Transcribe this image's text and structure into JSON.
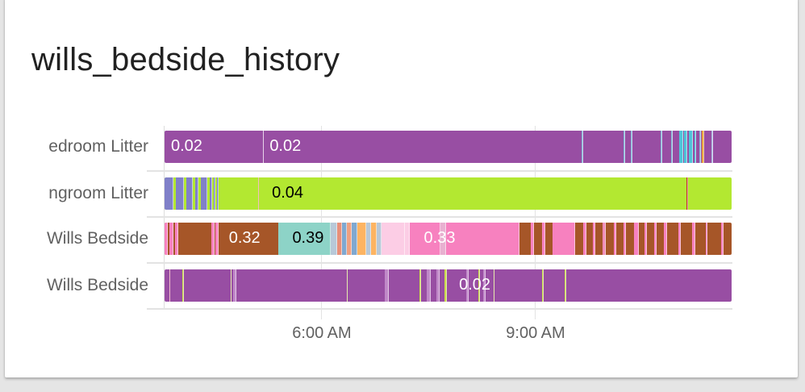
{
  "card": {
    "title": "wills_bedside_history"
  },
  "chart_data": {
    "type": "timeline",
    "title": "wills_bedside_history",
    "xlabel": "",
    "ylabel": "",
    "x_ticks": [
      "6:00 AM",
      "9:00 AM"
    ],
    "grid": true,
    "rows": [
      {
        "label": "Bedroom Litter",
        "visible_label": "edroom Litter",
        "base_color": "#984ea3",
        "value_labels": [
          {
            "text": "0.02",
            "x_pct": 0.0,
            "color": "#ffffff"
          },
          {
            "text": "0.02",
            "x_pct": 17.4,
            "color": "#ffffff"
          }
        ],
        "segments": [
          {
            "start": 0,
            "end": 100,
            "color": "#984ea3"
          },
          {
            "start": 17.3,
            "end": 17.45,
            "color": "#c9a0d0"
          },
          {
            "start": 73.6,
            "end": 73.85,
            "color": "#7fb3d5"
          },
          {
            "start": 81.0,
            "end": 81.25,
            "color": "#7fb3d5"
          },
          {
            "start": 82.2,
            "end": 82.45,
            "color": "#7fb3d5"
          },
          {
            "start": 87.5,
            "end": 87.75,
            "color": "#7fb3d5"
          },
          {
            "start": 89.3,
            "end": 89.55,
            "color": "#7fb3d5"
          },
          {
            "start": 90.8,
            "end": 91.4,
            "color": "#4fc3d8"
          },
          {
            "start": 91.6,
            "end": 92.2,
            "color": "#4fc3d8"
          },
          {
            "start": 92.4,
            "end": 93.2,
            "color": "#4fc3d8"
          },
          {
            "start": 93.4,
            "end": 93.8,
            "color": "#4fc3d8"
          },
          {
            "start": 94.3,
            "end": 94.55,
            "color": "#7fb3d5"
          },
          {
            "start": 94.8,
            "end": 95.2,
            "color": "#e8a33d"
          },
          {
            "start": 96.5,
            "end": 96.75,
            "color": "#a8b8e0"
          }
        ]
      },
      {
        "label": "Livingroom Litter",
        "visible_label": "ngroom Litter",
        "base_color": "#b3e831",
        "value_labels": [
          {
            "text": "0.04",
            "x_pct": 17.8,
            "color": "#000000"
          }
        ],
        "segments": [
          {
            "start": 0,
            "end": 100,
            "color": "#b3e831"
          },
          {
            "start": 0.0,
            "end": 1.6,
            "color": "#8080c8"
          },
          {
            "start": 2.0,
            "end": 3.4,
            "color": "#8080c8"
          },
          {
            "start": 3.8,
            "end": 5.0,
            "color": "#8080c8"
          },
          {
            "start": 5.4,
            "end": 6.0,
            "color": "#8080c8"
          },
          {
            "start": 6.4,
            "end": 7.6,
            "color": "#8080c8"
          },
          {
            "start": 8.0,
            "end": 8.4,
            "color": "#8080c8"
          },
          {
            "start": 8.7,
            "end": 9.0,
            "color": "#8080c8"
          },
          {
            "start": 9.3,
            "end": 9.6,
            "color": "#8080c8"
          },
          {
            "start": 16.5,
            "end": 16.7,
            "color": "#e07070"
          },
          {
            "start": 92.0,
            "end": 92.3,
            "color": "#c0392b"
          }
        ]
      },
      {
        "label": "Wills Bedside",
        "visible_label": "Wills Bedside",
        "base_color": "#a65628",
        "value_labels": [
          {
            "text": "0.32",
            "x_pct": 10.2,
            "color": "#ffffff"
          },
          {
            "text": "0.39",
            "x_pct": 21.4,
            "color": "#000000"
          },
          {
            "text": "0.33",
            "x_pct": 44.6,
            "color": "#ffffff"
          }
        ],
        "segments": [
          {
            "start": 0,
            "end": 100,
            "color": "#a65628"
          },
          {
            "start": 0.0,
            "end": 0.6,
            "color": "#f781bf"
          },
          {
            "start": 0.9,
            "end": 1.5,
            "color": "#f781bf"
          },
          {
            "start": 1.8,
            "end": 2.4,
            "color": "#f781bf"
          },
          {
            "start": 8.2,
            "end": 8.8,
            "color": "#f781bf"
          },
          {
            "start": 9.0,
            "end": 9.6,
            "color": "#f781bf"
          },
          {
            "start": 20.1,
            "end": 29.3,
            "color": "#8dd3c7"
          },
          {
            "start": 29.3,
            "end": 30.5,
            "color": "#b8c8d8"
          },
          {
            "start": 30.5,
            "end": 31.3,
            "color": "#e8907a"
          },
          {
            "start": 31.3,
            "end": 32.2,
            "color": "#7fa8d0"
          },
          {
            "start": 32.2,
            "end": 33.0,
            "color": "#f0a080"
          },
          {
            "start": 33.0,
            "end": 34.0,
            "color": "#7fa8d0"
          },
          {
            "start": 34.0,
            "end": 35.6,
            "color": "#fdb462"
          },
          {
            "start": 35.6,
            "end": 36.4,
            "color": "#b8c8d8"
          },
          {
            "start": 36.4,
            "end": 37.4,
            "color": "#fdb462"
          },
          {
            "start": 37.4,
            "end": 38.2,
            "color": "#b8c8d8"
          },
          {
            "start": 38.2,
            "end": 42.4,
            "color": "#fccde5"
          },
          {
            "start": 42.4,
            "end": 43.2,
            "color": "#fccde5"
          },
          {
            "start": 43.2,
            "end": 48.6,
            "color": "#f781bf"
          },
          {
            "start": 48.6,
            "end": 49.6,
            "color": "#e8b0d0"
          },
          {
            "start": 49.6,
            "end": 62.6,
            "color": "#f781bf"
          },
          {
            "start": 64.6,
            "end": 65.2,
            "color": "#f781bf"
          },
          {
            "start": 66.6,
            "end": 67.2,
            "color": "#f781bf"
          },
          {
            "start": 68.4,
            "end": 72.4,
            "color": "#f781bf"
          },
          {
            "start": 73.8,
            "end": 74.4,
            "color": "#f781bf"
          },
          {
            "start": 75.6,
            "end": 76.0,
            "color": "#f781bf"
          },
          {
            "start": 77.2,
            "end": 77.8,
            "color": "#f08cb8"
          },
          {
            "start": 79.2,
            "end": 79.6,
            "color": "#f781bf"
          },
          {
            "start": 81.0,
            "end": 81.4,
            "color": "#f781bf"
          },
          {
            "start": 82.8,
            "end": 83.6,
            "color": "#f781bf"
          },
          {
            "start": 84.6,
            "end": 85.0,
            "color": "#f781bf"
          },
          {
            "start": 86.4,
            "end": 86.8,
            "color": "#f781bf"
          },
          {
            "start": 88.0,
            "end": 88.6,
            "color": "#f781bf"
          },
          {
            "start": 90.6,
            "end": 91.0,
            "color": "#f781bf"
          },
          {
            "start": 93.0,
            "end": 93.6,
            "color": "#f781bf"
          },
          {
            "start": 95.4,
            "end": 95.8,
            "color": "#f781bf"
          },
          {
            "start": 98.2,
            "end": 98.6,
            "color": "#f781bf"
          }
        ]
      },
      {
        "label": "Wills Bedside",
        "visible_label": "Wills Bedside",
        "base_color": "#984ea3",
        "value_labels": [
          {
            "text": "0.02",
            "x_pct": 50.8,
            "color": "#ffffff"
          }
        ],
        "segments": [
          {
            "start": 0,
            "end": 100,
            "color": "#984ea3"
          },
          {
            "start": 0.8,
            "end": 1.0,
            "color": "#e07090"
          },
          {
            "start": 3.1,
            "end": 3.35,
            "color": "#c8d84c"
          },
          {
            "start": 11.6,
            "end": 11.8,
            "color": "#c8d84c"
          },
          {
            "start": 12.1,
            "end": 12.6,
            "color": "#c088c8"
          },
          {
            "start": 32.1,
            "end": 32.3,
            "color": "#c8d84c"
          },
          {
            "start": 38.8,
            "end": 39.6,
            "color": "#c088c8"
          },
          {
            "start": 45.0,
            "end": 45.2,
            "color": "#c8d84c"
          },
          {
            "start": 46.2,
            "end": 47.0,
            "color": "#c088c8"
          },
          {
            "start": 48.0,
            "end": 48.5,
            "color": "#c088c8"
          },
          {
            "start": 49.4,
            "end": 49.8,
            "color": "#c8d84c"
          },
          {
            "start": 53.2,
            "end": 53.6,
            "color": "#c088c8"
          },
          {
            "start": 55.4,
            "end": 55.6,
            "color": "#c8d84c"
          },
          {
            "start": 56.2,
            "end": 56.6,
            "color": "#c088c8"
          },
          {
            "start": 58.0,
            "end": 58.2,
            "color": "#c8d84c"
          },
          {
            "start": 66.6,
            "end": 66.8,
            "color": "#c8d84c"
          },
          {
            "start": 70.6,
            "end": 70.9,
            "color": "#c8d84c"
          }
        ]
      }
    ]
  }
}
